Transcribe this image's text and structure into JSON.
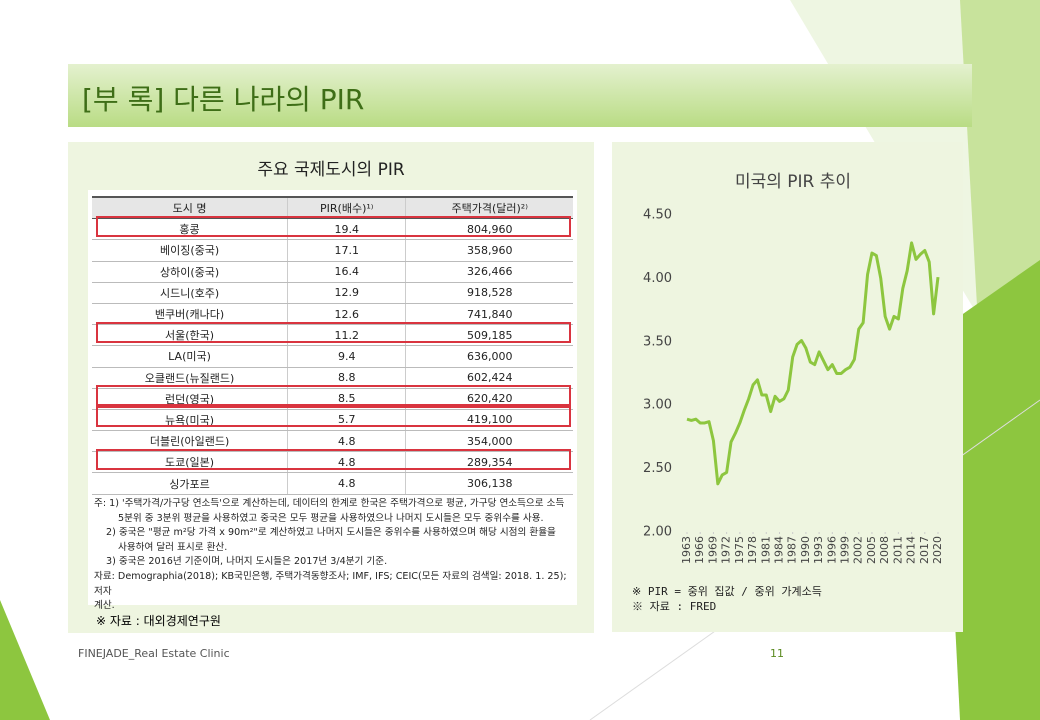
{
  "header": {
    "title": "[부 록] 다른 나라의 PIR"
  },
  "left_panel": {
    "title": "주요 국제도시의 PIR",
    "table": {
      "columns": [
        "도시 명",
        "PIR(배수)¹⁾",
        "주택가격(달러)²⁾"
      ],
      "rows": [
        [
          "홍콩",
          "19.4",
          "804,960"
        ],
        [
          "베이징(중국)",
          "17.1",
          "358,960"
        ],
        [
          "상하이(중국)",
          "16.4",
          "326,466"
        ],
        [
          "시드니(호주)",
          "12.9",
          "918,528"
        ],
        [
          "밴쿠버(캐나다)",
          "12.6",
          "741,840"
        ],
        [
          "서울(한국)",
          "11.2",
          "509,185"
        ],
        [
          "LA(미국)",
          "9.4",
          "636,000"
        ],
        [
          "오클랜드(뉴질랜드)",
          "8.8",
          "602,424"
        ],
        [
          "런던(영국)",
          "8.5",
          "620,420"
        ],
        [
          "뉴욕(미국)",
          "5.7",
          "419,100"
        ],
        [
          "더블린(아일랜드)",
          "4.8",
          "354,000"
        ],
        [
          "도쿄(일본)",
          "4.8",
          "289,354"
        ],
        [
          "싱가포르",
          "4.8",
          "306,138"
        ]
      ],
      "highlight_rows": [
        0,
        5,
        8,
        9,
        11
      ],
      "highlight_color": "#d9343f",
      "notes": [
        "주: 1) '주택가격/가구당 연소득'으로 계산하는데, 데이터의 한계로 한국은 주택가격으로 평균, 가구당 연소득으로 소득",
        "5분위 중 3분위 평균을 사용하였고 중국은 모두 평균을 사용하였으나 나머지 도시들은 모두 중위수를 사용.",
        "2) 중국은 \"평균 m²당 가격 x 90m²\"로 계산하였고 나머지 도시들은 중위수를 사용하였으며 해당 시점의 환율을",
        "사용하여 달러 표시로 환산.",
        "3) 중국은 2016년 기준이며, 나머지 도시들은 2017년 3/4분기 기준.",
        "자료: Demographia(2018); KB국민은행, 주택가격동향조사; IMF, IFS; CEIC(모든 자료의 검색일: 2018. 1. 25); 저자",
        "계산."
      ]
    },
    "source": "※ 자료 : 대외경제연구원"
  },
  "chart_data": {
    "type": "line",
    "title": "미국의 PIR 추이",
    "x": [
      1963,
      1964,
      1965,
      1966,
      1967,
      1968,
      1969,
      1970,
      1971,
      1972,
      1973,
      1974,
      1975,
      1976,
      1977,
      1978,
      1979,
      1980,
      1981,
      1982,
      1983,
      1984,
      1985,
      1986,
      1987,
      1988,
      1989,
      1990,
      1991,
      1992,
      1993,
      1994,
      1995,
      1996,
      1997,
      1998,
      1999,
      2000,
      2001,
      2002,
      2003,
      2004,
      2005,
      2006,
      2007,
      2008,
      2009,
      2010,
      2011,
      2012,
      2013,
      2014,
      2015,
      2016,
      2017,
      2018,
      2019,
      2020
    ],
    "values": [
      2.89,
      2.88,
      2.89,
      2.86,
      2.86,
      2.87,
      2.72,
      2.38,
      2.45,
      2.47,
      2.71,
      2.78,
      2.86,
      2.96,
      3.05,
      3.16,
      3.2,
      3.08,
      3.08,
      2.95,
      3.07,
      3.03,
      3.05,
      3.12,
      3.38,
      3.48,
      3.51,
      3.45,
      3.34,
      3.32,
      3.42,
      3.35,
      3.28,
      3.32,
      3.25,
      3.25,
      3.28,
      3.3,
      3.36,
      3.6,
      3.65,
      4.03,
      4.2,
      4.18,
      4.0,
      3.7,
      3.6,
      3.7,
      3.68,
      3.92,
      4.06,
      4.28,
      4.15,
      4.19,
      4.22,
      4.13,
      3.72,
      4.01
    ],
    "color": "#8dc63f",
    "xlim": [
      1963,
      2020
    ],
    "xticks": [
      1963,
      1966,
      1969,
      1972,
      1975,
      1978,
      1981,
      1984,
      1987,
      1990,
      1993,
      1996,
      1999,
      2002,
      2005,
      2008,
      2011,
      2014,
      2017,
      2020
    ],
    "ylim": [
      2.0,
      4.5
    ],
    "yticks": [
      {
        "value": 2.0,
        "label": "2.00"
      },
      {
        "value": 2.5,
        "label": "2.50"
      },
      {
        "value": 3.0,
        "label": "3.00"
      },
      {
        "value": 3.5,
        "label": "3.50"
      },
      {
        "value": 4.0,
        "label": "4.00"
      },
      {
        "value": 4.5,
        "label": "4.50"
      }
    ],
    "grid": false,
    "notes": [
      "※ PIR = 중위 집값 / 중위 가계소득",
      "※ 자료 : FRED"
    ]
  },
  "footer": {
    "left": "FINEJADE_Real Estate Clinic",
    "page": "11"
  }
}
